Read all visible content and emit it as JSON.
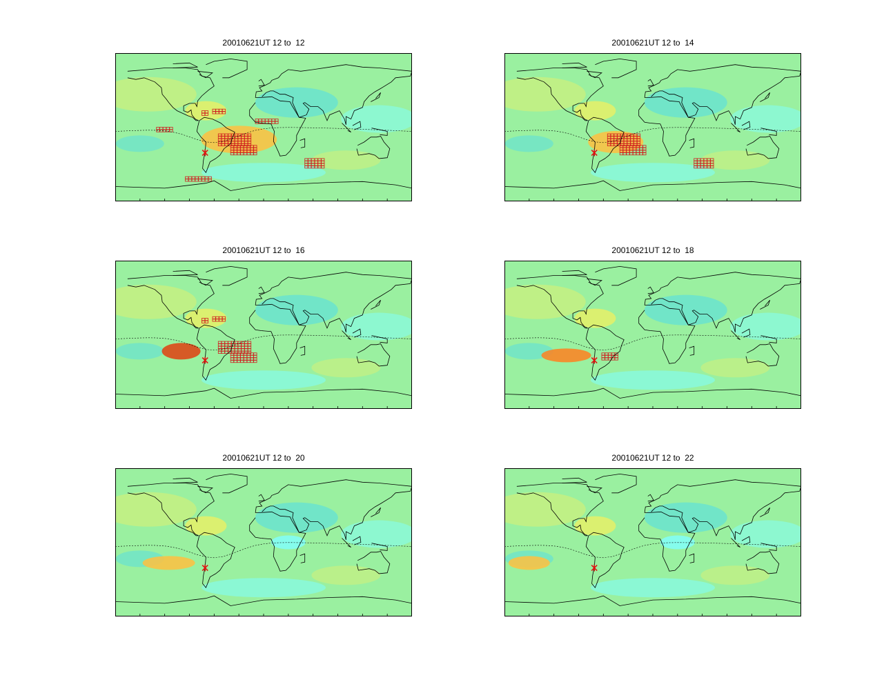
{
  "figure": {
    "background": "#ffffff",
    "colormap": [
      "#80ffff",
      "#60e0d8",
      "#9af0a0",
      "#c8f080",
      "#f0f060",
      "#ffc040",
      "#ff8020",
      "#e04010"
    ]
  },
  "panels": [
    {
      "title": "20010621UT 12 to  12",
      "epicenter": {
        "lon": -71,
        "lat": -31
      },
      "marker_color": "#e01010",
      "anomaly_regions": [
        "caribbean",
        "south-atlantic",
        "equatorial-atlantic",
        "south-indian",
        "antarctic-coast",
        "east-pacific"
      ]
    },
    {
      "title": "20010621UT 12 to  14",
      "epicenter": {
        "lon": -71,
        "lat": -31
      },
      "marker_color": "#e01010",
      "anomaly_regions": [
        "south-atlantic",
        "south-indian"
      ]
    },
    {
      "title": "20010621UT 12 to  16",
      "epicenter": {
        "lon": -71,
        "lat": -31
      },
      "marker_color": "#e01010",
      "anomaly_regions": [
        "caribbean",
        "south-atlantic"
      ]
    },
    {
      "title": "20010621UT 12 to  18",
      "epicenter": {
        "lon": -71,
        "lat": -31
      },
      "marker_color": "#e01010",
      "anomaly_regions": [
        "south-atlantic-small"
      ]
    },
    {
      "title": "20010621UT 12 to  20",
      "epicenter": {
        "lon": -71,
        "lat": -31
      },
      "marker_color": "#e01010",
      "anomaly_regions": []
    },
    {
      "title": "20010621UT 12 to  22",
      "epicenter": {
        "lon": -71,
        "lat": -31
      },
      "marker_color": "#e01010",
      "anomaly_regions": []
    }
  ]
}
